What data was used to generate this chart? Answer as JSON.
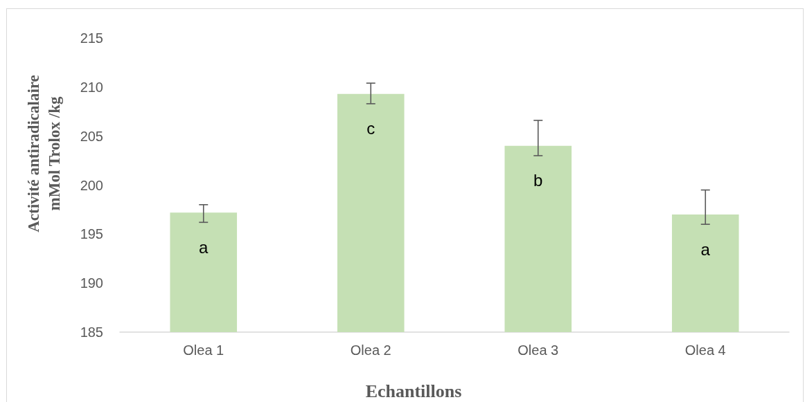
{
  "chart_data": {
    "type": "bar",
    "categories": [
      "Olea 1",
      "Olea 2",
      "Olea 3",
      "Olea 4"
    ],
    "values": [
      197.2,
      209.3,
      204.0,
      197.0
    ],
    "color": "#c5e0b4",
    "errors": [
      [
        196.2,
        198.0
      ],
      [
        208.3,
        210.4
      ],
      [
        203.0,
        206.6
      ],
      [
        196.0,
        199.5
      ]
    ],
    "ylim": [
      185,
      215
    ],
    "yticks": [
      185,
      190,
      195,
      200,
      205,
      210,
      215
    ],
    "xlabel": "Echantillons",
    "ylabel": "Activité antiradicalaire\nmMol Trolox /kg",
    "annotations": [
      {
        "text": "a",
        "x": "Olea 1",
        "y": 197.2
      },
      {
        "text": "c",
        "x": "Olea 2",
        "y": 209.3
      },
      {
        "text": "b",
        "x": "Olea 3",
        "y": 204.0
      },
      {
        "text": "a",
        "x": "Olea 4",
        "y": 197.0
      }
    ],
    "grid": false
  }
}
